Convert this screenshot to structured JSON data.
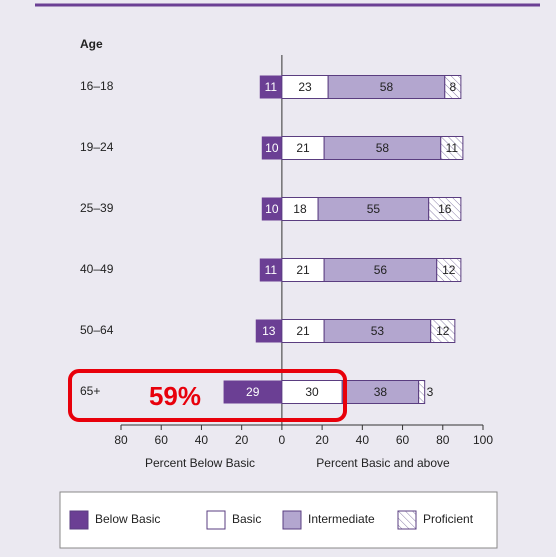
{
  "chart_data": {
    "type": "diverging-bar",
    "y_axis_label": "Age",
    "categories": [
      "16–18",
      "19–24",
      "25–39",
      "40–49",
      "50–64",
      "65+"
    ],
    "series": [
      {
        "name": "Below Basic",
        "color": "#6b3f94",
        "values": [
          11,
          10,
          10,
          11,
          13,
          29
        ]
      },
      {
        "name": "Basic",
        "color": "#ffffff",
        "values": [
          23,
          21,
          18,
          21,
          21,
          30
        ]
      },
      {
        "name": "Intermediate",
        "color": "#b3a6cf",
        "values": [
          58,
          58,
          55,
          56,
          53,
          38
        ]
      },
      {
        "name": "Proficient",
        "color": "hatch",
        "values": [
          8,
          11,
          16,
          12,
          12,
          3
        ]
      }
    ],
    "xlim": [
      -80,
      100
    ],
    "xticks": [
      {
        "value": -80,
        "label": "80"
      },
      {
        "value": -60,
        "label": "60"
      },
      {
        "value": -40,
        "label": "40"
      },
      {
        "value": -20,
        "label": "20"
      },
      0,
      20,
      40,
      60,
      80,
      100
    ],
    "x_axis_label_left": "Percent Below Basic",
    "x_axis_label_right": "Percent Basic and above",
    "annotation": "59%"
  }
}
